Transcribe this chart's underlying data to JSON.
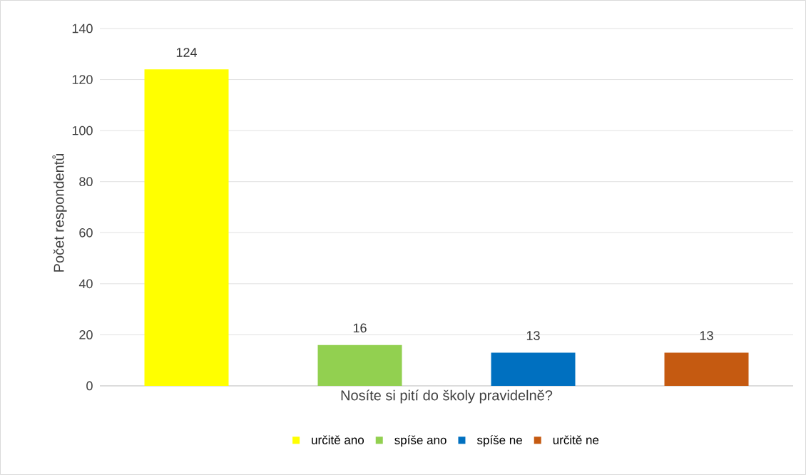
{
  "chart_data": {
    "type": "bar",
    "ylabel": "Počet respondentů",
    "categories": [
      "Nosíte si pití do školy pravidelně?"
    ],
    "series": [
      {
        "name": "určitě ano",
        "color": "#ffff00",
        "values": [
          124
        ]
      },
      {
        "name": "spíše ano",
        "color": "#92d050",
        "values": [
          16
        ]
      },
      {
        "name": "spíše ne",
        "color": "#0070c0",
        "values": [
          13
        ]
      },
      {
        "name": "určitě ne",
        "color": "#c55a11",
        "values": [
          13
        ]
      }
    ],
    "ylim": [
      0,
      140
    ],
    "yticks": [
      0,
      20,
      40,
      60,
      80,
      100,
      120,
      140
    ],
    "grid": "y",
    "legend": "bottom",
    "data_labels": true
  }
}
